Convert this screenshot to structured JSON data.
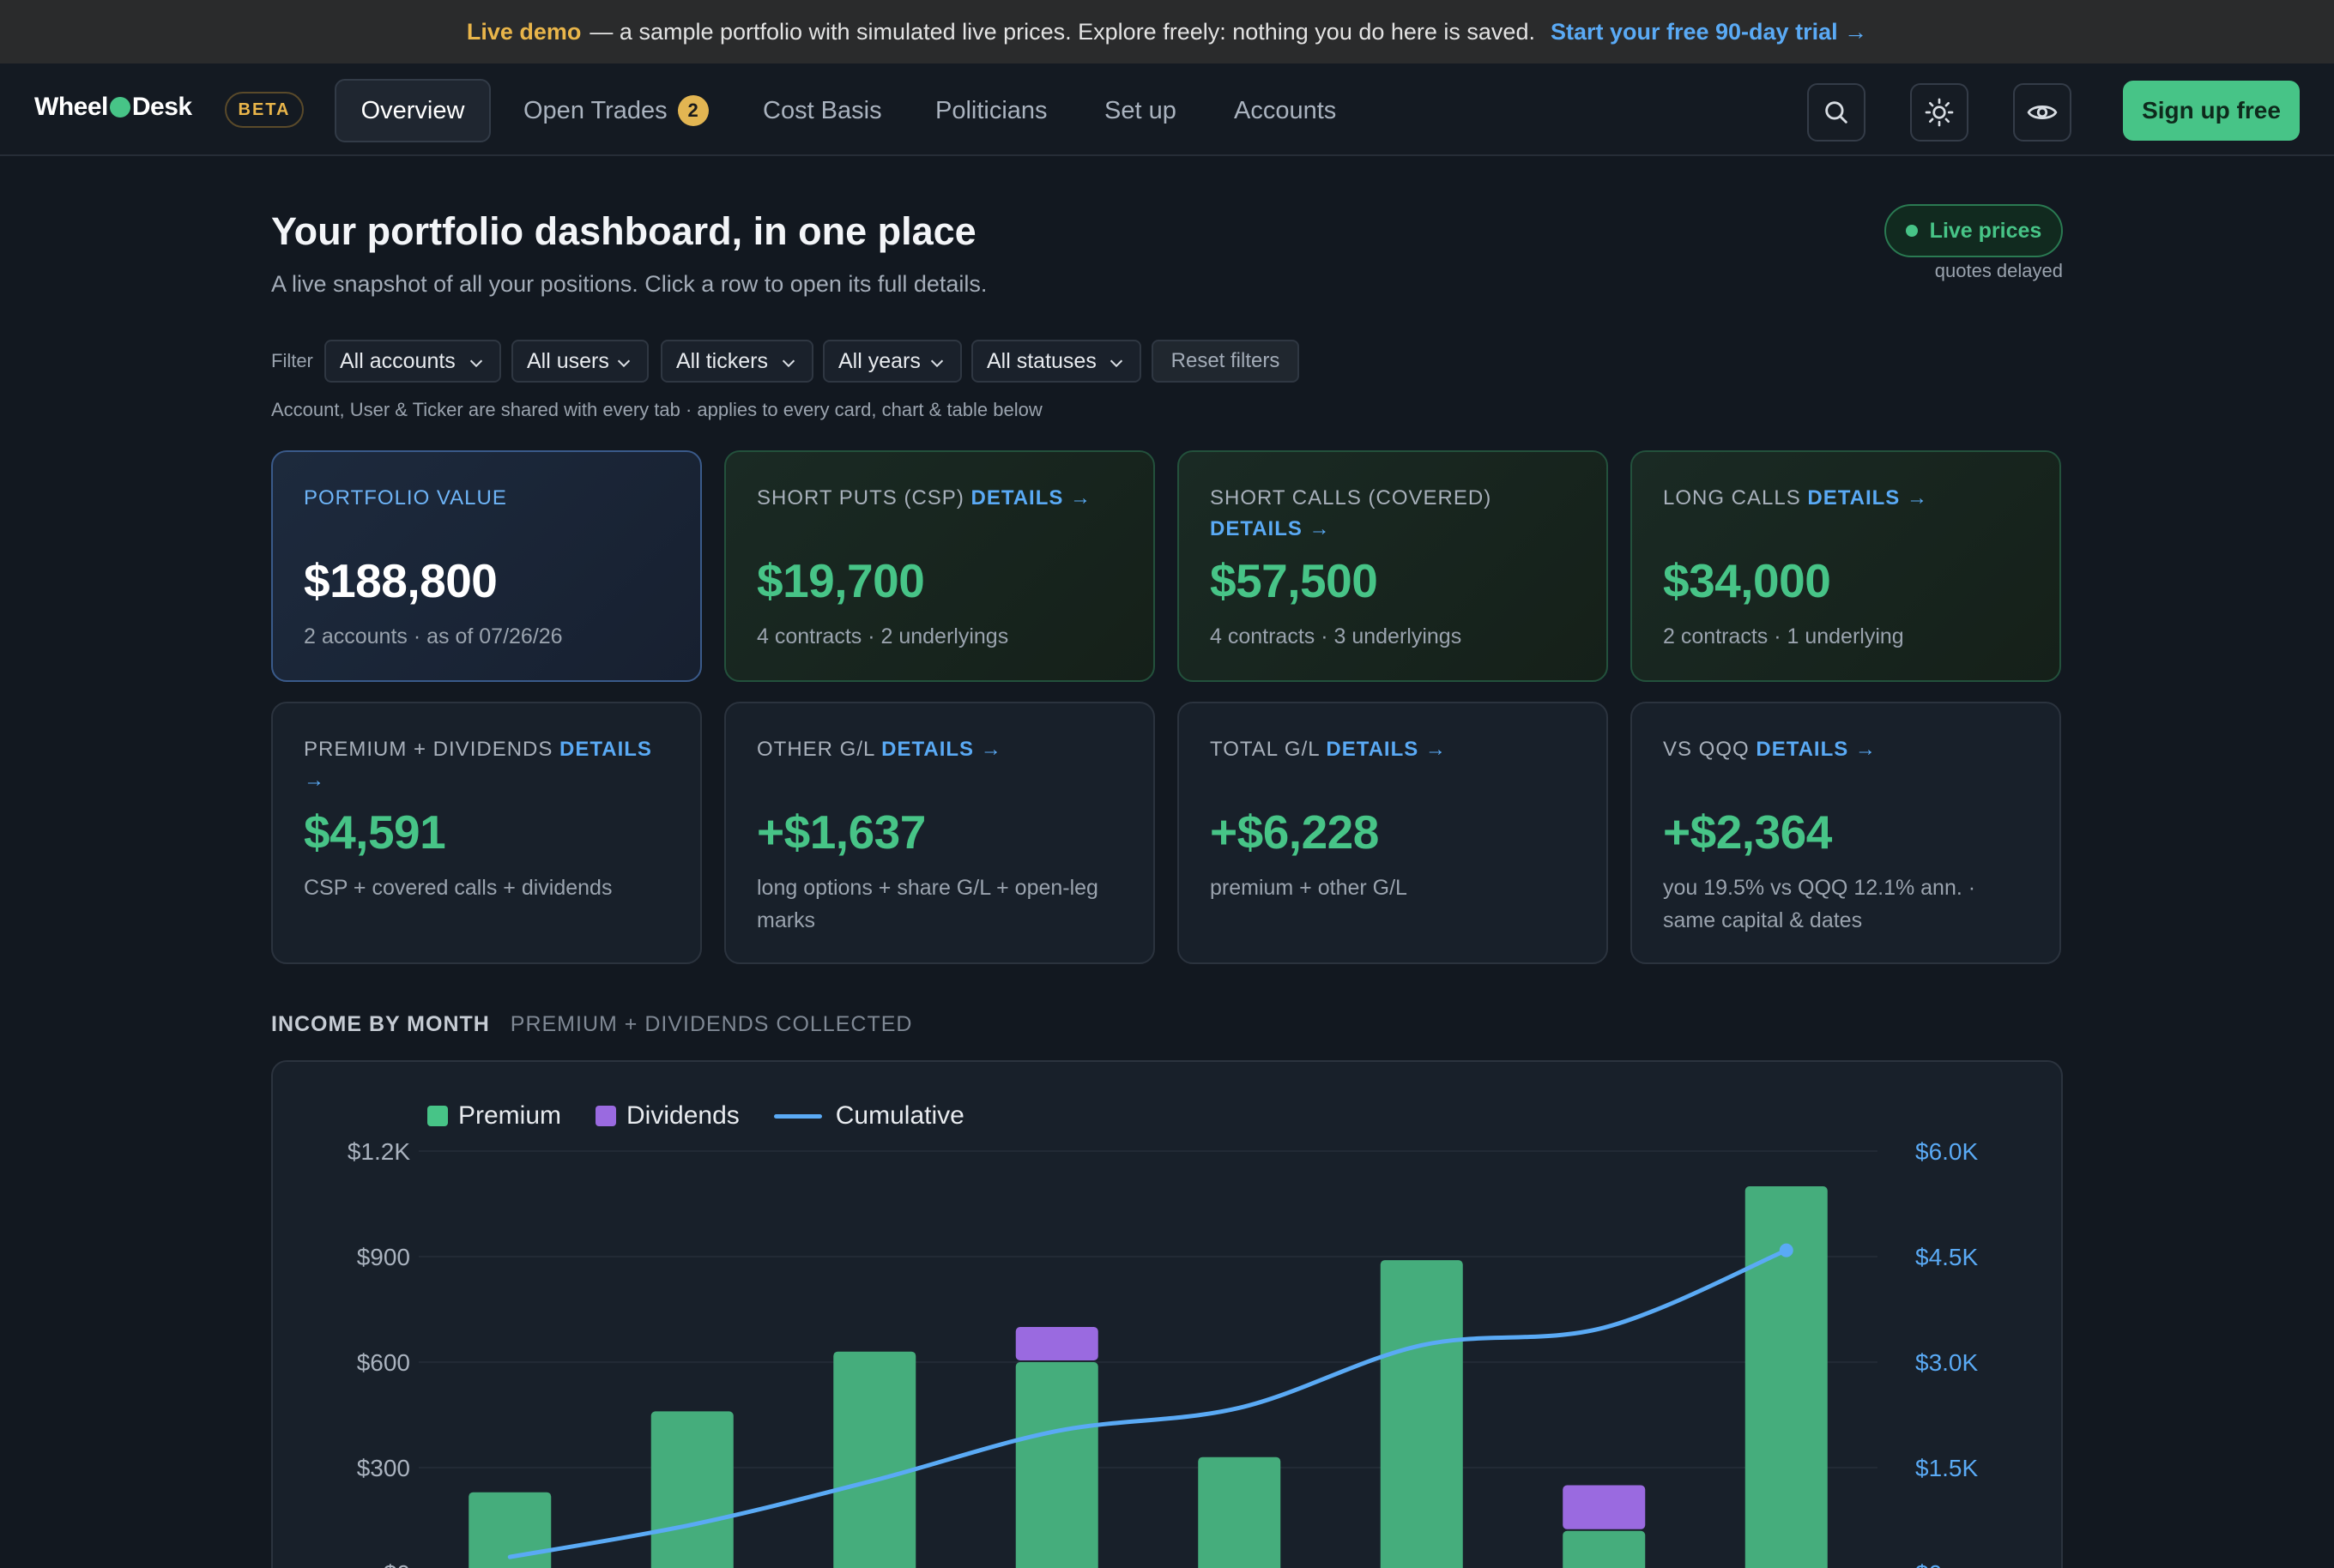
{
  "banner": {
    "highlight": "Live demo",
    "text": "— a sample portfolio with simulated live prices. Explore freely: nothing you do here is saved.",
    "cta": "Start your free 90-day trial →"
  },
  "nav": {
    "logo_left": "Wheel",
    "logo_right": "Desk",
    "beta": "BETA",
    "tabs": [
      {
        "label": "Overview"
      },
      {
        "label": "Open Trades",
        "badge": "2"
      },
      {
        "label": "Cost Basis"
      },
      {
        "label": "Politicians"
      },
      {
        "label": "Set up"
      },
      {
        "label": "Accounts"
      }
    ],
    "icons": [
      "search-icon",
      "sun-icon",
      "eye-icon"
    ],
    "signup": "Sign up free"
  },
  "header": {
    "title": "Your portfolio dashboard, in one place",
    "subtitle": "A live snapshot of all your positions. Click a row to open its full details.",
    "live": "Live prices",
    "delayed": "quotes delayed"
  },
  "filters": {
    "label": "Filter",
    "selects": [
      "All accounts",
      "All users",
      "All tickers",
      "All years",
      "All statuses"
    ],
    "reset": "Reset filters",
    "note": "Account, User & Ticker are shared with every tab · applies to every card, chart & table below"
  },
  "cards": [
    {
      "label": "PORTFOLIO VALUE",
      "details": "",
      "value": "$188,800",
      "sub": "2 accounts · as of 07/26/26"
    },
    {
      "label": "SHORT PUTS (CSP)",
      "details": "DETAILS →",
      "value": "$19,700",
      "sub": "4 contracts · 2 underlyings"
    },
    {
      "label": "SHORT CALLS (COVERED)",
      "details": "DETAILS →",
      "value": "$57,500",
      "sub": "4 contracts · 3 underlyings"
    },
    {
      "label": "LONG CALLS",
      "details": "DETAILS →",
      "value": "$34,000",
      "sub": "2 contracts · 1 underlying"
    },
    {
      "label": "PREMIUM + DIVIDENDS",
      "details": "DETAILS →",
      "value": "$4,591",
      "sub": "CSP + covered calls + dividends"
    },
    {
      "label": "OTHER G/L",
      "details": "DETAILS →",
      "value": "+$1,637",
      "sub": "long options + share G/L + open-leg marks"
    },
    {
      "label": "TOTAL G/L",
      "details": "DETAILS →",
      "value": "+$6,228",
      "sub": "premium + other G/L"
    },
    {
      "label": "VS QQQ",
      "details": "DETAILS →",
      "value": "+$2,364",
      "sub": "you 19.5% vs QQQ 12.1% ann. · same capital & dates"
    }
  ],
  "income": {
    "title": "INCOME BY MONTH",
    "subtitle": "PREMIUM + DIVIDENDS COLLECTED"
  },
  "colors": {
    "accent_green": "#47c487",
    "accent_blue": "#5aaaf5",
    "dividend_purple": "#9a6ae0",
    "beta_gold": "#e9b54a"
  },
  "chart_data": {
    "type": "bar",
    "series": [
      {
        "name": "Premium",
        "values": [
          230,
          460,
          630,
          600,
          330,
          890,
          120,
          1100
        ]
      },
      {
        "name": "Dividends",
        "values": [
          0,
          0,
          0,
          100,
          0,
          0,
          130,
          0
        ]
      },
      {
        "name": "Cumulative",
        "values": [
          230,
          690,
          1320,
          2020,
          2350,
          3240,
          3490,
          4590
        ]
      }
    ],
    "legend": [
      "Premium",
      "Dividends",
      "Cumulative"
    ],
    "y_left_ticks": [
      "$0",
      "$300",
      "$600",
      "$900",
      "$1.2K"
    ],
    "y_right_ticks": [
      "$0",
      "$1.5K",
      "$3.0K",
      "$4.5K",
      "$6.0K"
    ],
    "ylim_left": [
      0,
      1200
    ],
    "ylim_right": [
      0,
      6000
    ],
    "legend_position": "top-left",
    "grid": true
  }
}
